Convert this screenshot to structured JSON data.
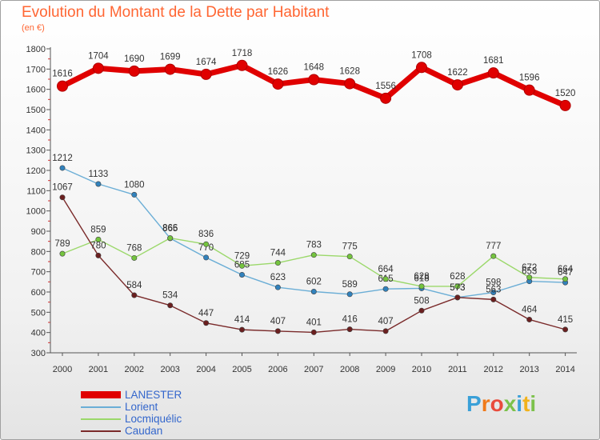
{
  "title": "Evolution du Montant de la Dette par Habitant",
  "unit_label": "(en €)",
  "colors": {
    "title": "#ff6633",
    "legend_text": "#3366cc",
    "axis": "#555555",
    "grid": "#c8c8c8"
  },
  "logo": "Proxiti",
  "chart_data": {
    "type": "line",
    "title": "Evolution du Montant de la Dette par Habitant",
    "subtitle": "(en €)",
    "xlabel": "",
    "ylabel": "",
    "x": [
      "2000",
      "2001",
      "2002",
      "2003",
      "2004",
      "2005",
      "2006",
      "2007",
      "2008",
      "2009",
      "2010",
      "2011",
      "2012",
      "2013",
      "2014"
    ],
    "ylim": [
      300,
      1800
    ],
    "yticks": [
      300,
      400,
      500,
      600,
      700,
      800,
      900,
      1000,
      1100,
      1200,
      1300,
      1400,
      1500,
      1600,
      1700,
      1800
    ],
    "grid": false,
    "legend_placement": "bottom-left",
    "series": [
      {
        "name": "LANESTER",
        "color": "#e00000",
        "marker": "#e00000",
        "highlight": true,
        "values": [
          1616,
          1704,
          1690,
          1699,
          1674,
          1718,
          1626,
          1648,
          1628,
          1556,
          1708,
          1622,
          1681,
          1596,
          1520
        ]
      },
      {
        "name": "Lorient",
        "color": "#6baed6",
        "marker": "#3182bd",
        "values": [
          1212,
          1133,
          1080,
          865,
          770,
          685,
          623,
          602,
          589,
          615,
          618,
          573,
          598,
          653,
          647
        ]
      },
      {
        "name": "Locmiquélic",
        "color": "#9bd86a",
        "marker": "#74c43e",
        "values": [
          789,
          859,
          768,
          866,
          836,
          729,
          744,
          783,
          775,
          664,
          628,
          628,
          777,
          672,
          664
        ]
      },
      {
        "name": "Caudan",
        "color": "#7a2a2a",
        "marker": "#6b1f1f",
        "values": [
          1067,
          780,
          584,
          534,
          447,
          414,
          407,
          401,
          416,
          407,
          508,
          573,
          563,
          464,
          415
        ]
      }
    ]
  }
}
